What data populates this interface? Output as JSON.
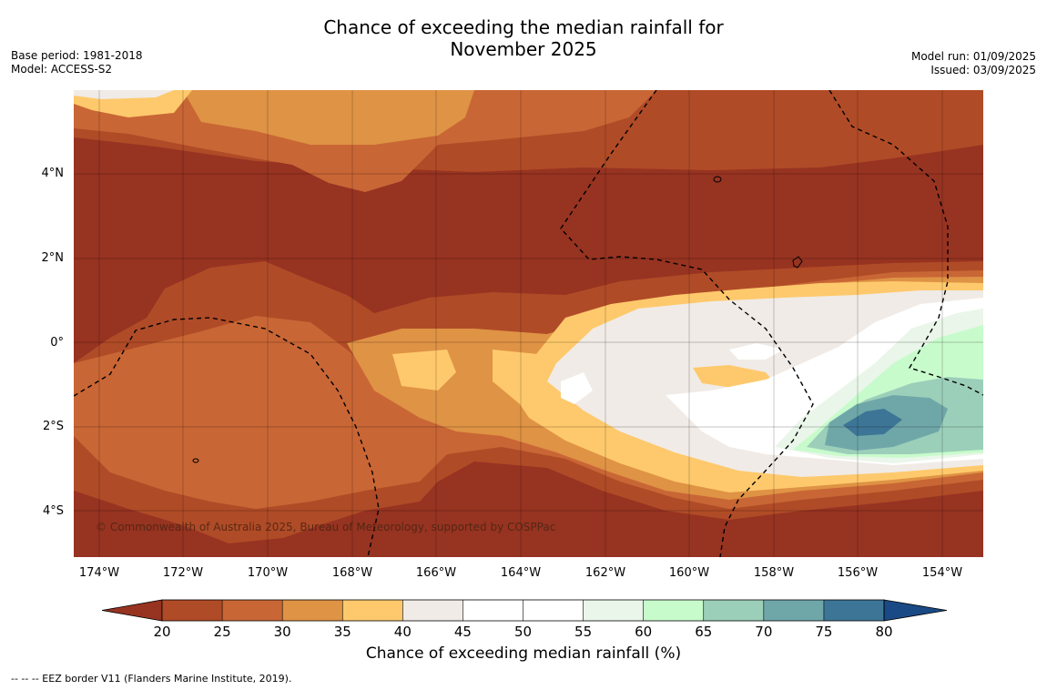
{
  "title_line1": "Chance of exceeding the median rainfall for",
  "title_line2": "November 2025",
  "meta": {
    "base_period": "Base period: 1981-2018",
    "model": "Model: ACCESS-S2",
    "model_run": "Model run: 01/09/2025",
    "issued": "Issued: 03/09/2025"
  },
  "map": {
    "lat_labels": [
      "4°N",
      "2°N",
      "0°",
      "2°S",
      "4°S"
    ],
    "lon_labels": [
      "174°W",
      "172°W",
      "170°W",
      "168°W",
      "166°W",
      "164°W",
      "162°W",
      "160°W",
      "158°W",
      "156°W",
      "154°W"
    ],
    "copyright": "© Commonwealth of Australia 2025, Bureau of Meteorology, supported by COSPPac"
  },
  "colorbar": {
    "ticks": [
      "20",
      "25",
      "30",
      "35",
      "40",
      "45",
      "50",
      "55",
      "60",
      "65",
      "70",
      "75",
      "80"
    ],
    "colors": [
      "#973321",
      "#b04b27",
      "#c96635",
      "#df9345",
      "#fec96c",
      "#f0ebe6",
      "#ffffff",
      "#ffffff",
      "#e9f6e9",
      "#c8fbcc",
      "#9ccfb9",
      "#6fa7a9",
      "#3d7596",
      "#1a4a85"
    ],
    "title": "Chance of exceeding median rainfall (%)"
  },
  "footnote": "--  --  -- EEZ border V11 (Flanders Marine Institute, 2019)."
}
